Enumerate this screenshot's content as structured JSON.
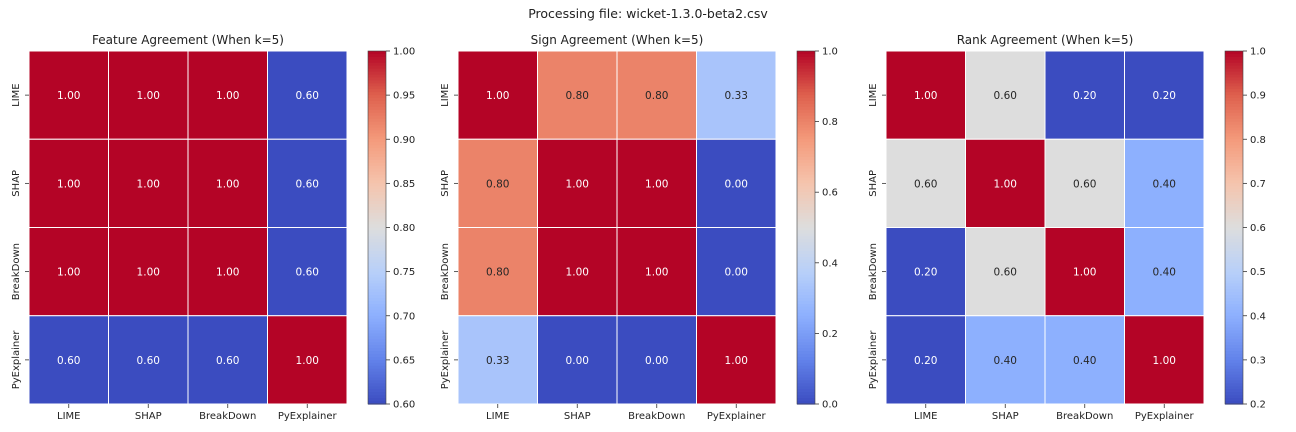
{
  "figure": {
    "suptitle": "Processing file: wicket-1.3.0-beta2.csv"
  },
  "chart_data": [
    {
      "type": "heatmap",
      "title": "Feature Agreement (When k=5)",
      "labels": [
        "LIME",
        "SHAP",
        "BreakDown",
        "PyExplainer"
      ],
      "matrix": [
        [
          1.0,
          1.0,
          1.0,
          0.6
        ],
        [
          1.0,
          1.0,
          1.0,
          0.6
        ],
        [
          1.0,
          1.0,
          1.0,
          0.6
        ],
        [
          0.6,
          0.6,
          0.6,
          1.0
        ]
      ],
      "cell_labels": [
        [
          "1.00",
          "1.00",
          "1.00",
          "0.60"
        ],
        [
          "1.00",
          "1.00",
          "1.00",
          "0.60"
        ],
        [
          "1.00",
          "1.00",
          "1.00",
          "0.60"
        ],
        [
          "0.60",
          "0.60",
          "0.60",
          "1.00"
        ]
      ],
      "vmin": 0.6,
      "vmax": 1.0,
      "colorbar_ticks": [
        0.6,
        0.65,
        0.7,
        0.75,
        0.8,
        0.85,
        0.9,
        0.95,
        1.0
      ],
      "colorbar_tick_labels": [
        "0.60",
        "0.65",
        "0.70",
        "0.75",
        "0.80",
        "0.85",
        "0.90",
        "0.95",
        "1.00"
      ],
      "colormap": "coolwarm"
    },
    {
      "type": "heatmap",
      "title": "Sign Agreement (When k=5)",
      "labels": [
        "LIME",
        "SHAP",
        "BreakDown",
        "PyExplainer"
      ],
      "matrix": [
        [
          1.0,
          0.8,
          0.8,
          0.33
        ],
        [
          0.8,
          1.0,
          1.0,
          0.0
        ],
        [
          0.8,
          1.0,
          1.0,
          0.0
        ],
        [
          0.33,
          0.0,
          0.0,
          1.0
        ]
      ],
      "cell_labels": [
        [
          "1.00",
          "0.80",
          "0.80",
          "0.33"
        ],
        [
          "0.80",
          "1.00",
          "1.00",
          "0.00"
        ],
        [
          "0.80",
          "1.00",
          "1.00",
          "0.00"
        ],
        [
          "0.33",
          "0.00",
          "0.00",
          "1.00"
        ]
      ],
      "vmin": 0.0,
      "vmax": 1.0,
      "colorbar_ticks": [
        0.0,
        0.2,
        0.4,
        0.6,
        0.8,
        1.0
      ],
      "colorbar_tick_labels": [
        "0.0",
        "0.2",
        "0.4",
        "0.6",
        "0.8",
        "1.0"
      ],
      "colormap": "coolwarm"
    },
    {
      "type": "heatmap",
      "title": "Rank Agreement (When k=5)",
      "labels": [
        "LIME",
        "SHAP",
        "BreakDown",
        "PyExplainer"
      ],
      "matrix": [
        [
          1.0,
          0.6,
          0.2,
          0.2
        ],
        [
          0.6,
          1.0,
          0.6,
          0.4
        ],
        [
          0.2,
          0.6,
          1.0,
          0.4
        ],
        [
          0.2,
          0.4,
          0.4,
          1.0
        ]
      ],
      "cell_labels": [
        [
          "1.00",
          "0.60",
          "0.20",
          "0.20"
        ],
        [
          "0.60",
          "1.00",
          "0.60",
          "0.40"
        ],
        [
          "0.20",
          "0.60",
          "1.00",
          "0.40"
        ],
        [
          "0.20",
          "0.40",
          "0.40",
          "1.00"
        ]
      ],
      "vmin": 0.2,
      "vmax": 1.0,
      "colorbar_ticks": [
        0.2,
        0.3,
        0.4,
        0.5,
        0.6,
        0.7,
        0.8,
        0.9,
        1.0
      ],
      "colorbar_tick_labels": [
        "0.2",
        "0.3",
        "0.4",
        "0.5",
        "0.6",
        "0.7",
        "0.8",
        "0.9",
        "1.0"
      ],
      "colormap": "coolwarm"
    }
  ]
}
